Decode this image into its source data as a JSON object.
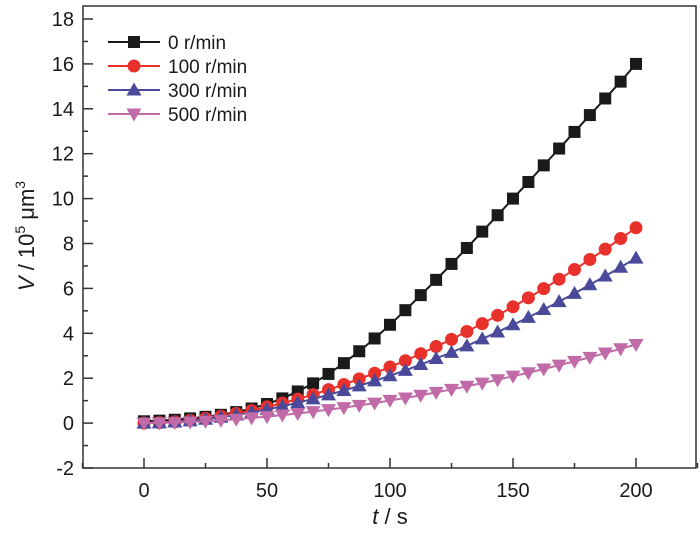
{
  "chart_data": {
    "type": "line",
    "title": "",
    "xlabel_italic": "t",
    "xlabel_rest": " / s",
    "ylabel_italic": "V",
    "ylabel_rest": " / 10",
    "ylabel_sup": "5",
    "ylabel_unit": " μm",
    "ylabel_unit_sup": "3",
    "xlim": [
      -25,
      225
    ],
    "ylim": [
      -2,
      18
    ],
    "xticks": [
      0,
      50,
      100,
      150,
      200
    ],
    "yticks": [
      -2,
      0,
      2,
      4,
      6,
      8,
      10,
      12,
      14,
      16,
      18
    ],
    "xtick_labels": [
      "0",
      "50",
      "100",
      "150",
      "200"
    ],
    "ytick_labels": [
      "-2",
      "0",
      "2",
      "4",
      "6",
      "8",
      "10",
      "12",
      "14",
      "16",
      "18"
    ],
    "legend_position": "top-left",
    "x": [
      0,
      6.25,
      12.5,
      18.75,
      25,
      31.25,
      37.5,
      43.75,
      50,
      56.25,
      62.5,
      68.75,
      75,
      81.25,
      87.5,
      93.75,
      100,
      106.25,
      112.5,
      118.75,
      125,
      131.25,
      137.5,
      143.75,
      150,
      156.25,
      162.5,
      168.75,
      175,
      181.25,
      187.5,
      193.75,
      200
    ],
    "series": [
      {
        "name": "0 r/min",
        "color": "#1a1a1a",
        "marker": "square",
        "values": [
          0.08,
          0.11,
          0.15,
          0.21,
          0.28,
          0.37,
          0.49,
          0.65,
          0.85,
          1.1,
          1.41,
          1.77,
          2.19,
          2.67,
          3.2,
          3.77,
          4.38,
          5.03,
          5.7,
          6.38,
          7.09,
          7.8,
          8.53,
          9.26,
          10.0,
          10.74,
          11.48,
          12.23,
          12.97,
          13.72,
          14.46,
          15.21,
          16.0
        ]
      },
      {
        "name": "100 r/min",
        "color": "#e8312a",
        "marker": "circle",
        "values": [
          0,
          0.02,
          0.06,
          0.12,
          0.21,
          0.31,
          0.43,
          0.56,
          0.72,
          0.89,
          1.07,
          1.27,
          1.49,
          1.72,
          1.97,
          2.22,
          2.5,
          2.78,
          3.09,
          3.41,
          3.73,
          4.08,
          4.43,
          4.8,
          5.18,
          5.58,
          5.99,
          6.41,
          6.84,
          7.29,
          7.75,
          8.22,
          8.7
        ]
      },
      {
        "name": "300 r/min",
        "color": "#4b4a9a",
        "marker": "triangle-up",
        "values": [
          0,
          0.01,
          0.05,
          0.1,
          0.17,
          0.26,
          0.36,
          0.48,
          0.61,
          0.75,
          0.91,
          1.08,
          1.26,
          1.45,
          1.66,
          1.88,
          2.11,
          2.35,
          2.61,
          2.88,
          3.15,
          3.44,
          3.75,
          4.06,
          4.38,
          4.71,
          5.06,
          5.41,
          5.78,
          6.16,
          6.55,
          6.94,
          7.35
        ]
      },
      {
        "name": "500 r/min",
        "color": "#c06aa8",
        "marker": "triangle-down",
        "values": [
          0,
          0.01,
          0.02,
          0.05,
          0.08,
          0.12,
          0.17,
          0.23,
          0.29,
          0.36,
          0.43,
          0.51,
          0.6,
          0.69,
          0.79,
          0.89,
          1.01,
          1.12,
          1.24,
          1.37,
          1.5,
          1.64,
          1.78,
          1.93,
          2.09,
          2.24,
          2.41,
          2.58,
          2.75,
          2.93,
          3.12,
          3.31,
          3.5
        ]
      }
    ]
  }
}
